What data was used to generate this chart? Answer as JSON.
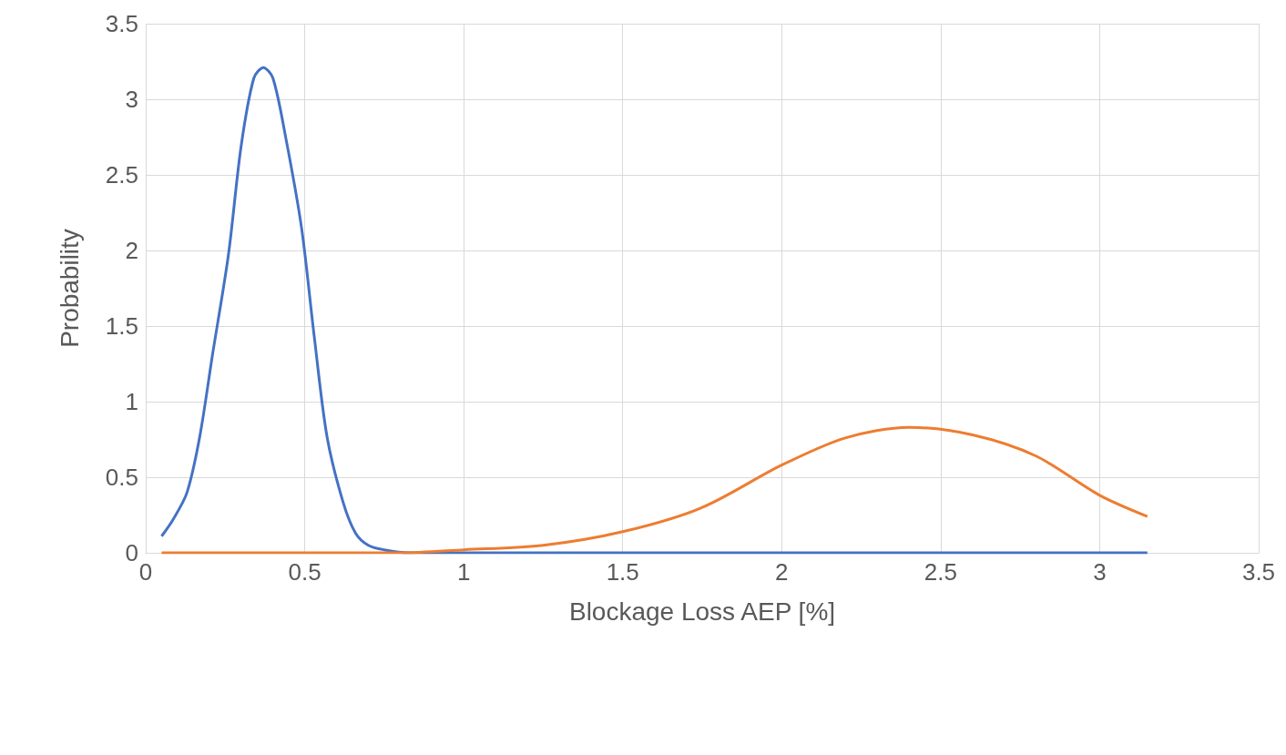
{
  "chart_data": {
    "type": "line",
    "xlabel": "Blockage Loss AEP [%]",
    "ylabel": "Probability",
    "xlim": [
      0,
      3.5
    ],
    "xticks": [
      0,
      0.5,
      1,
      1.5,
      2,
      2.5,
      3,
      3.5
    ],
    "ylim": [
      0,
      3.5
    ],
    "yticks": [
      0,
      0.5,
      1,
      1.5,
      2,
      2.5,
      3,
      3.5
    ],
    "grid": true,
    "marker": "none",
    "line_style": "solid",
    "series": [
      {
        "color": "#4472c4",
        "x": [
          0.05,
          0.086,
          0.13,
          0.17,
          0.21,
          0.26,
          0.3,
          0.34,
          0.37,
          0.4,
          0.44,
          0.49,
          0.53,
          0.57,
          0.62,
          0.66,
          0.7,
          0.75,
          0.83,
          1,
          1.5,
          2,
          2.5,
          3,
          3.15
        ],
        "values": [
          0.11,
          0.22,
          0.4,
          0.77,
          1.31,
          1.97,
          2.69,
          3.14,
          3.21,
          3.14,
          2.75,
          2.15,
          1.43,
          0.77,
          0.34,
          0.13,
          0.05,
          0.02,
          0,
          0,
          0,
          0,
          0,
          0,
          0
        ]
      },
      {
        "color": "#ed7d31",
        "x": [
          0.05,
          0.5,
          0.8,
          1,
          1.25,
          1.5,
          1.75,
          2,
          2.2,
          2.4,
          2.6,
          2.8,
          3,
          3.15
        ],
        "values": [
          0,
          0,
          0,
          0.02,
          0.05,
          0.14,
          0.3,
          0.58,
          0.76,
          0.83,
          0.78,
          0.64,
          0.38,
          0.24
        ]
      }
    ]
  }
}
